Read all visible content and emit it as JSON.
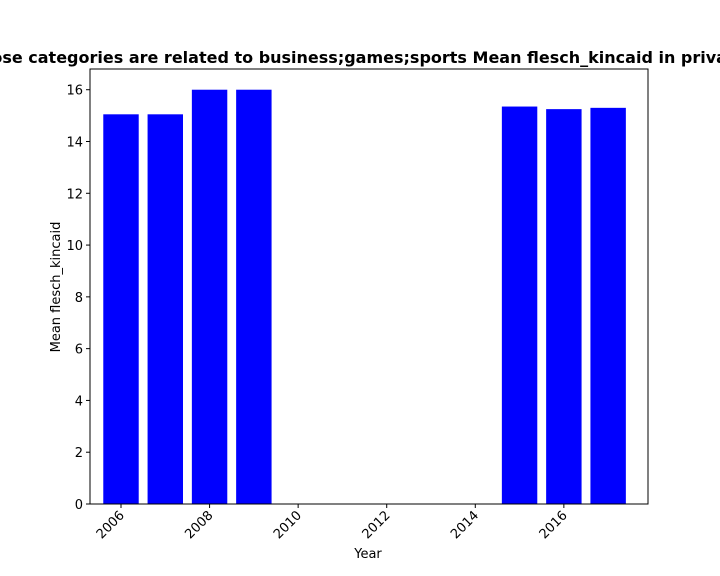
{
  "chart_data": {
    "type": "bar",
    "title": "Apps whose categories are related to business;games;sports Mean flesch_kincaid in privacy policies",
    "xlabel": "Year",
    "ylabel": "Mean flesch_kincaid",
    "x": [
      2006,
      2007,
      2008,
      2009,
      2015,
      2016,
      2017
    ],
    "values": [
      15.05,
      15.05,
      16.0,
      16.0,
      15.35,
      15.25,
      15.3
    ],
    "bar_color": "#0000ff",
    "xlim": [
      2005.3,
      2017.9
    ],
    "ylim": [
      0,
      16.8
    ],
    "xticks": [
      2006,
      2008,
      2010,
      2012,
      2014,
      2016
    ],
    "yticks": [
      0,
      2,
      4,
      6,
      8,
      10,
      12,
      14,
      16
    ],
    "grid": false,
    "legend": "none"
  }
}
